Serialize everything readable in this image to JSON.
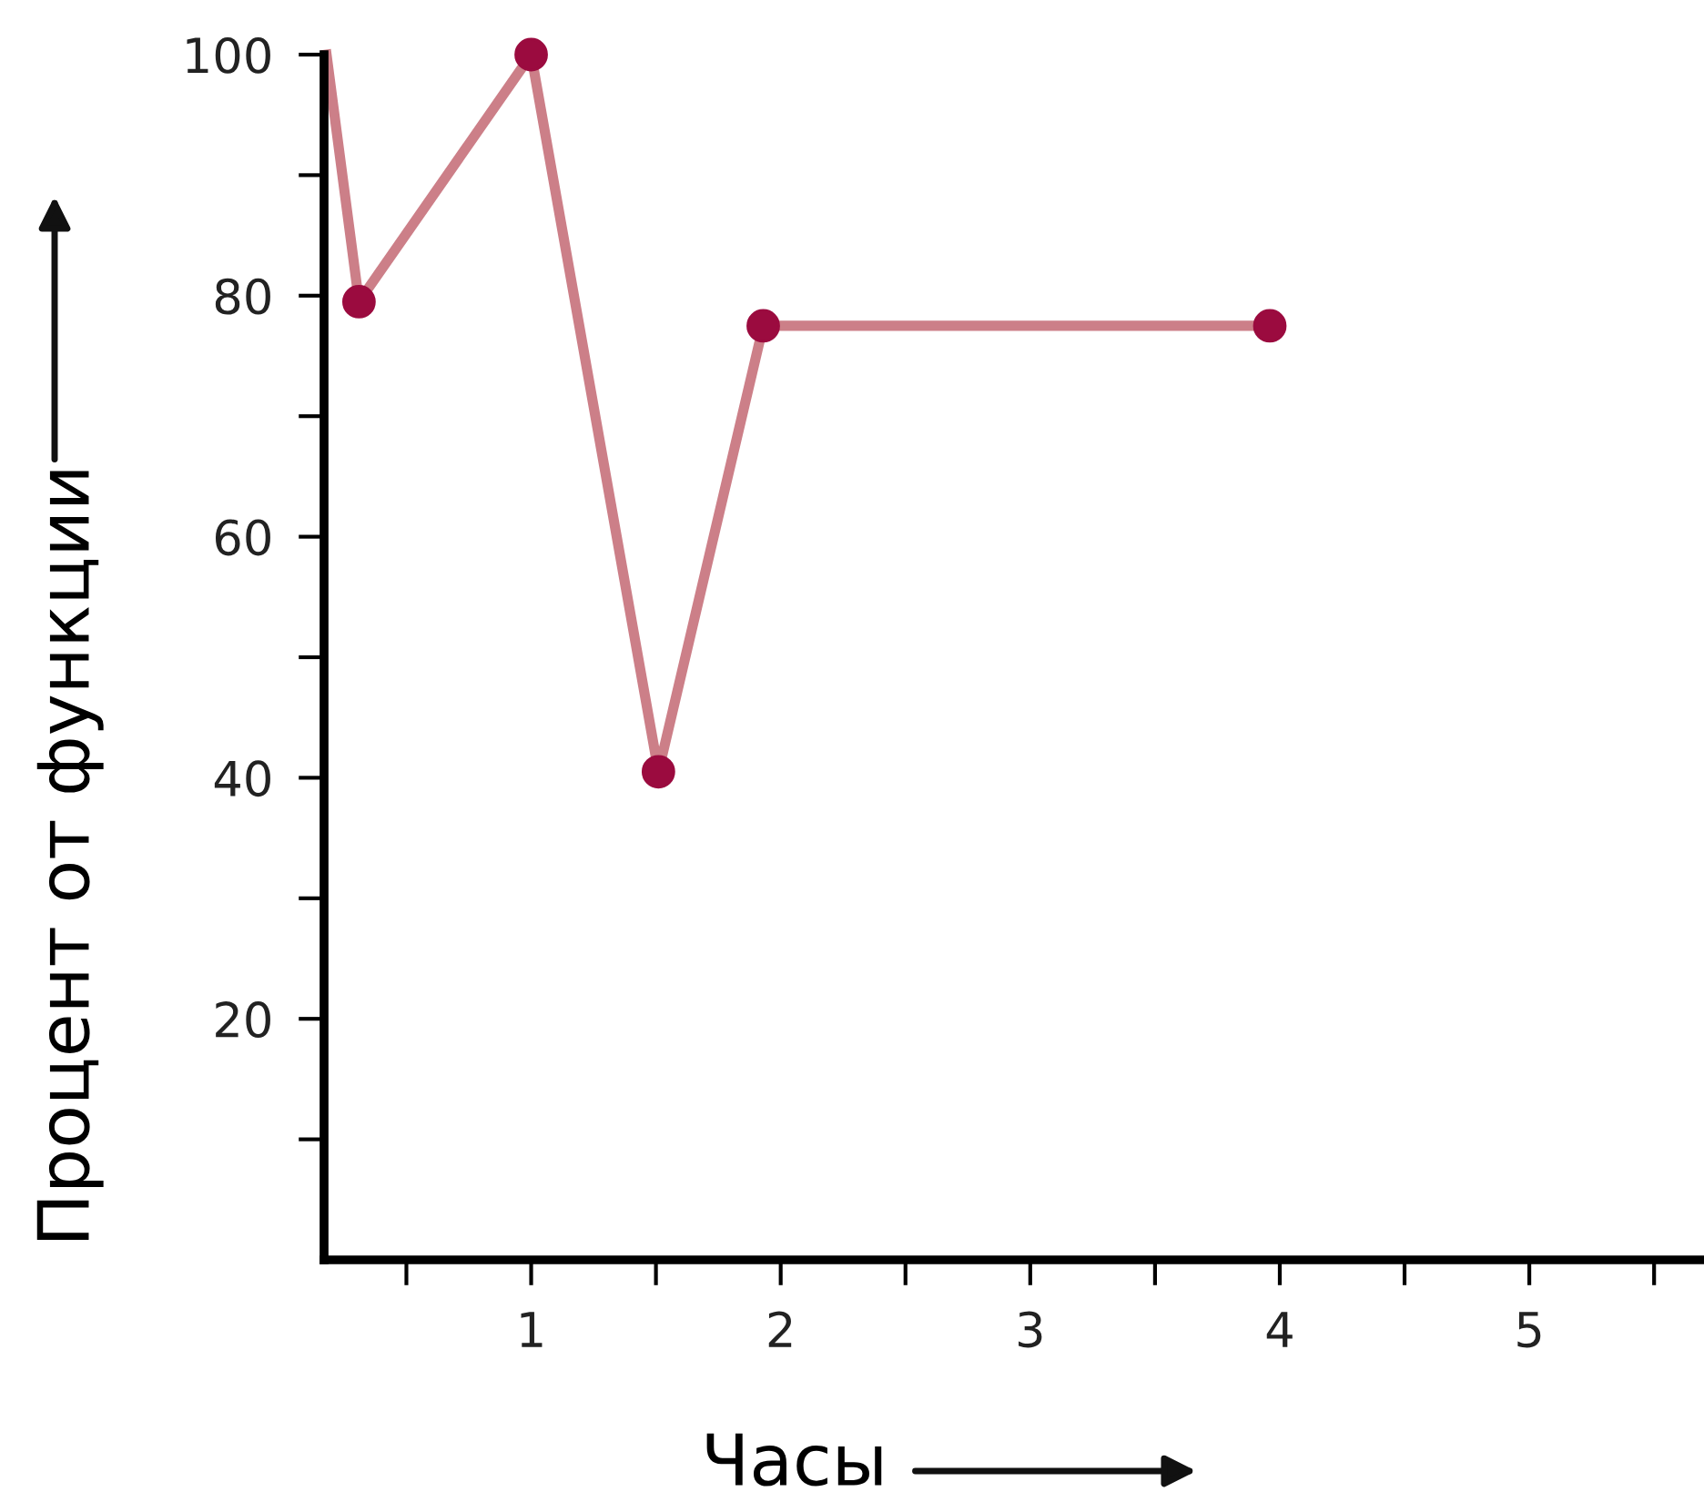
{
  "chart_data": {
    "type": "line",
    "xlabel": "Часы",
    "ylabel": "Процент от функции",
    "xlim": [
      0.17,
      5.7
    ],
    "ylim": [
      0,
      100
    ],
    "xticks": [
      {
        "value": 0.5,
        "label": null
      },
      1,
      {
        "value": 1.5,
        "label": null
      },
      2,
      {
        "value": 2.5,
        "label": null
      },
      3,
      {
        "value": 3.5,
        "label": null
      },
      4,
      {
        "value": 4.5,
        "label": null
      },
      5,
      {
        "value": 5.5,
        "label": null
      }
    ],
    "yticks": [
      {
        "value": 10,
        "label": null
      },
      20,
      {
        "value": 30,
        "label": null
      },
      40,
      {
        "value": 50,
        "label": null
      },
      60,
      {
        "value": 70,
        "label": null
      },
      80,
      {
        "value": 90,
        "label": null
      },
      100
    ],
    "grid": false,
    "series": [
      {
        "color": "#cc7f88",
        "marker": "circle",
        "colors": [
          null,
          "#9b0b3f",
          "#9b0b3f",
          "#9b0b3f",
          "#9b0b3f",
          "#9b0b3f"
        ],
        "x": [
          0.18,
          0.31,
          1.0,
          1.51,
          1.93,
          3.96
        ],
        "values": [
          100,
          79.5,
          100,
          40.5,
          77.5,
          77.5
        ]
      }
    ]
  }
}
